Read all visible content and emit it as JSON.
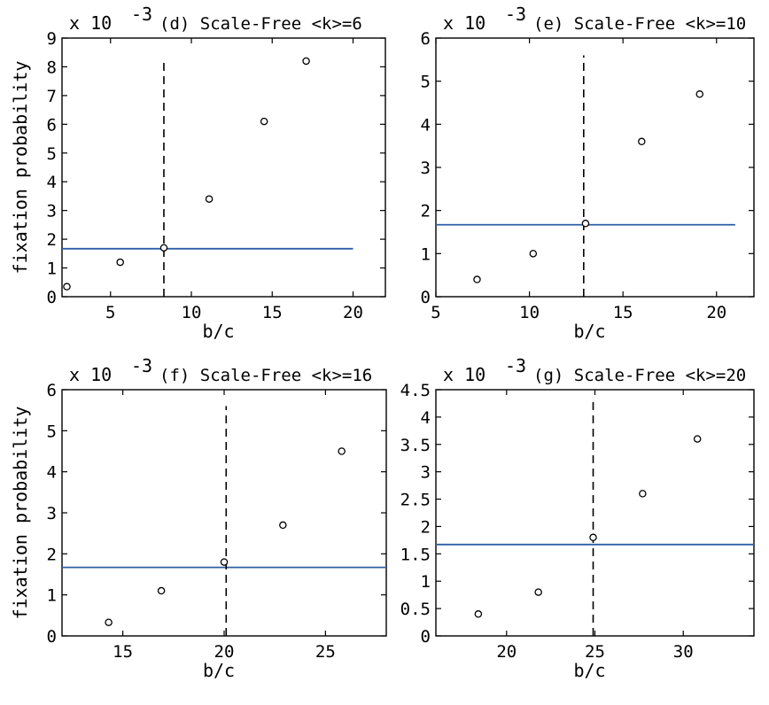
{
  "chart_data": [
    {
      "type": "scatter",
      "title": "(d) Scale-Free <k>=6",
      "xlabel": "b/c",
      "ylabel": "fixation probability",
      "multiplier_base": "x 10",
      "multiplier_exp": "-3",
      "xlim": [
        2,
        22
      ],
      "ylim": [
        0,
        9
      ],
      "xticks": [
        5,
        10,
        15,
        20
      ],
      "yticks": [
        0,
        1,
        2,
        3,
        4,
        5,
        6,
        7,
        8,
        9
      ],
      "x": [
        2.3,
        5.6,
        8.3,
        11.1,
        14.5,
        17.1
      ],
      "y": [
        0.35,
        1.2,
        1.7,
        3.4,
        6.1,
        8.2
      ],
      "hline": {
        "y": 1.67,
        "xrange": [
          2,
          20
        ],
        "color": "#2f5fa5"
      },
      "vline": {
        "x": 8.3,
        "yrange": [
          0,
          8.2
        ]
      }
    },
    {
      "type": "scatter",
      "title": "(e) Scale-Free <k>=10",
      "xlabel": "b/c",
      "ylabel": "",
      "multiplier_base": "x 10",
      "multiplier_exp": "-3",
      "xlim": [
        5,
        22
      ],
      "ylim": [
        0,
        6
      ],
      "xticks": [
        5,
        10,
        15,
        20
      ],
      "yticks": [
        0,
        1,
        2,
        3,
        4,
        5,
        6
      ],
      "x": [
        7.2,
        10.2,
        13.0,
        16.0,
        19.1
      ],
      "y": [
        0.4,
        1.0,
        1.7,
        3.6,
        4.7
      ],
      "hline": {
        "y": 1.67,
        "xrange": [
          5,
          21
        ],
        "color": "#2f5fa5"
      },
      "vline": {
        "x": 12.9,
        "yrange": [
          0,
          5.6
        ]
      }
    },
    {
      "type": "scatter",
      "title": "(f) Scale-Free <k>=16",
      "xlabel": "b/c",
      "ylabel": "fixation probability",
      "multiplier_base": "x 10",
      "multiplier_exp": "-3",
      "xlim": [
        12,
        28
      ],
      "ylim": [
        0,
        6
      ],
      "xticks": [
        15,
        20,
        25
      ],
      "yticks": [
        0,
        1,
        2,
        3,
        4,
        5,
        6
      ],
      "x": [
        14.3,
        16.9,
        20.0,
        22.9,
        25.8
      ],
      "y": [
        0.33,
        1.1,
        1.8,
        2.7,
        4.5
      ],
      "hline": {
        "y": 1.67,
        "xrange": [
          12,
          28
        ],
        "color": "#2f5fa5"
      },
      "vline": {
        "x": 20.1,
        "yrange": [
          0,
          5.6
        ]
      }
    },
    {
      "type": "scatter",
      "title": "(g) Scale-Free <k>=20",
      "xlabel": "b/c",
      "ylabel": "",
      "multiplier_base": "x 10",
      "multiplier_exp": "-3",
      "xlim": [
        16,
        34
      ],
      "ylim": [
        0,
        4.5
      ],
      "xticks": [
        20,
        25,
        30
      ],
      "yticks": [
        0,
        0.5,
        1,
        1.5,
        2,
        2.5,
        3,
        3.5,
        4,
        4.5
      ],
      "ytick_labels": [
        "0",
        "0.5",
        "1",
        "1.5",
        "2",
        "2.5",
        "3",
        "3.5",
        "4",
        "4.5"
      ],
      "x": [
        18.4,
        21.8,
        24.9,
        27.7,
        30.8
      ],
      "y": [
        0.4,
        0.8,
        1.8,
        2.6,
        3.6
      ],
      "hline": {
        "y": 1.67,
        "xrange": [
          16,
          34
        ],
        "color": "#2f5fa5"
      },
      "vline": {
        "x": 24.9,
        "yrange": [
          0,
          4.3
        ]
      }
    }
  ]
}
